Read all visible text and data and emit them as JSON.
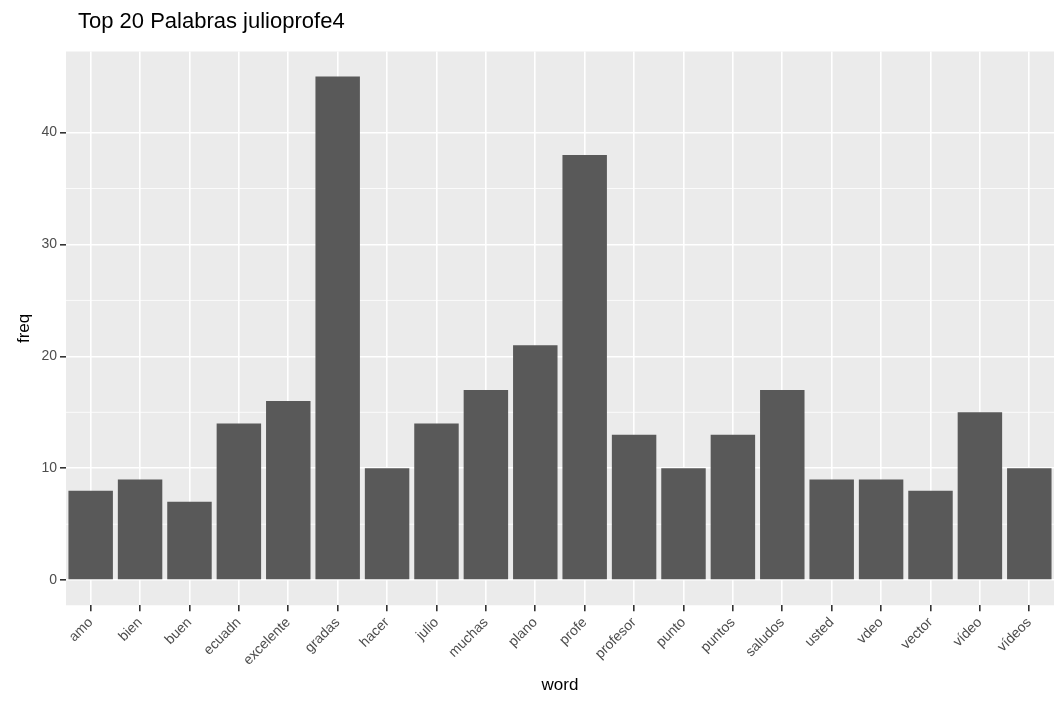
{
  "chart_data": {
    "type": "bar",
    "title": "Top 20 Palabras julioprofe4",
    "xlabel": "word",
    "ylabel": "freq",
    "categories": [
      "amo",
      "bien",
      "buen",
      "ecuadn",
      "excelente",
      "gradas",
      "hacer",
      "julio",
      "muchas",
      "plano",
      "profe",
      "profesor",
      "punto",
      "puntos",
      "saludos",
      "usted",
      "vdeo",
      "vector",
      "vídeo",
      "vídeos"
    ],
    "values": [
      8,
      9,
      7,
      14,
      16,
      45,
      10,
      14,
      17,
      21,
      38,
      13,
      10,
      13,
      17,
      9,
      9,
      8,
      15,
      10
    ],
    "color": "#595959",
    "ylim": [
      -2.25,
      47.25
    ],
    "yticks": [
      0,
      10,
      20,
      30,
      40
    ],
    "grid": true
  }
}
